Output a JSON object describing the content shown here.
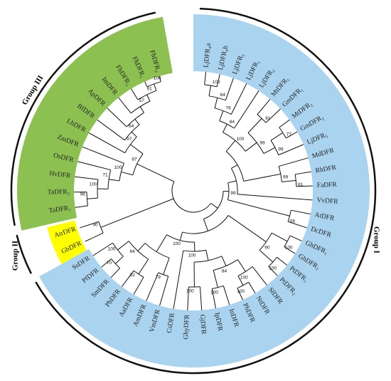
{
  "groups": [
    {
      "label": "Group I"
    },
    {
      "label": "Group II"
    },
    {
      "label": "Group III"
    }
  ],
  "leaves": [
    "LjDFR₄a",
    "LjDFR₄b",
    "LjDFR₃",
    "LjDFR₁",
    "LjDFR₂",
    "MtDFR₁",
    "GmDFR₁",
    "MtDFR₂",
    "GmDFR₂",
    "LjDFR₅",
    "MdDFR",
    "RhDFR",
    "FaDFR",
    "VvDFR",
    "AtDFR",
    "DcDFR",
    "GhDFR₁",
    "GhDFR₂",
    "PtDFR₁",
    "PtDFR₂",
    "SlDFR",
    "NtDFR",
    "PhDFR",
    "InDFR",
    "IpDFR",
    "GjDFR",
    "GhyDFR",
    "CsDFR",
    "VmDFR",
    "AmDFR",
    "AaDFR",
    "PbDFR",
    "SmDFR",
    "PfDFR",
    "SsDFR",
    "GbDFR",
    "AtrDFR",
    "TaDFR₁",
    "TaDFR₂",
    "HvDFR",
    "OsDFR",
    "ZmDFR",
    "LhDFR",
    "BfDFR",
    "ApDFR",
    "ImDFR",
    "FhDFR₃",
    "FhDFR₁",
    "FhDFR₂"
  ],
  "bootstrap": [
    100,
    64,
    76,
    84,
    81,
    77,
    99,
    99,
    100,
    81,
    99,
    66,
    99,
    100,
    100,
    90,
    100,
    100,
    100,
    84,
    100,
    100,
    79,
    82,
    70,
    100,
    64,
    100,
    90,
    98,
    100,
    71,
    100,
    100,
    91,
    57,
    64,
    97,
    87
  ]
}
